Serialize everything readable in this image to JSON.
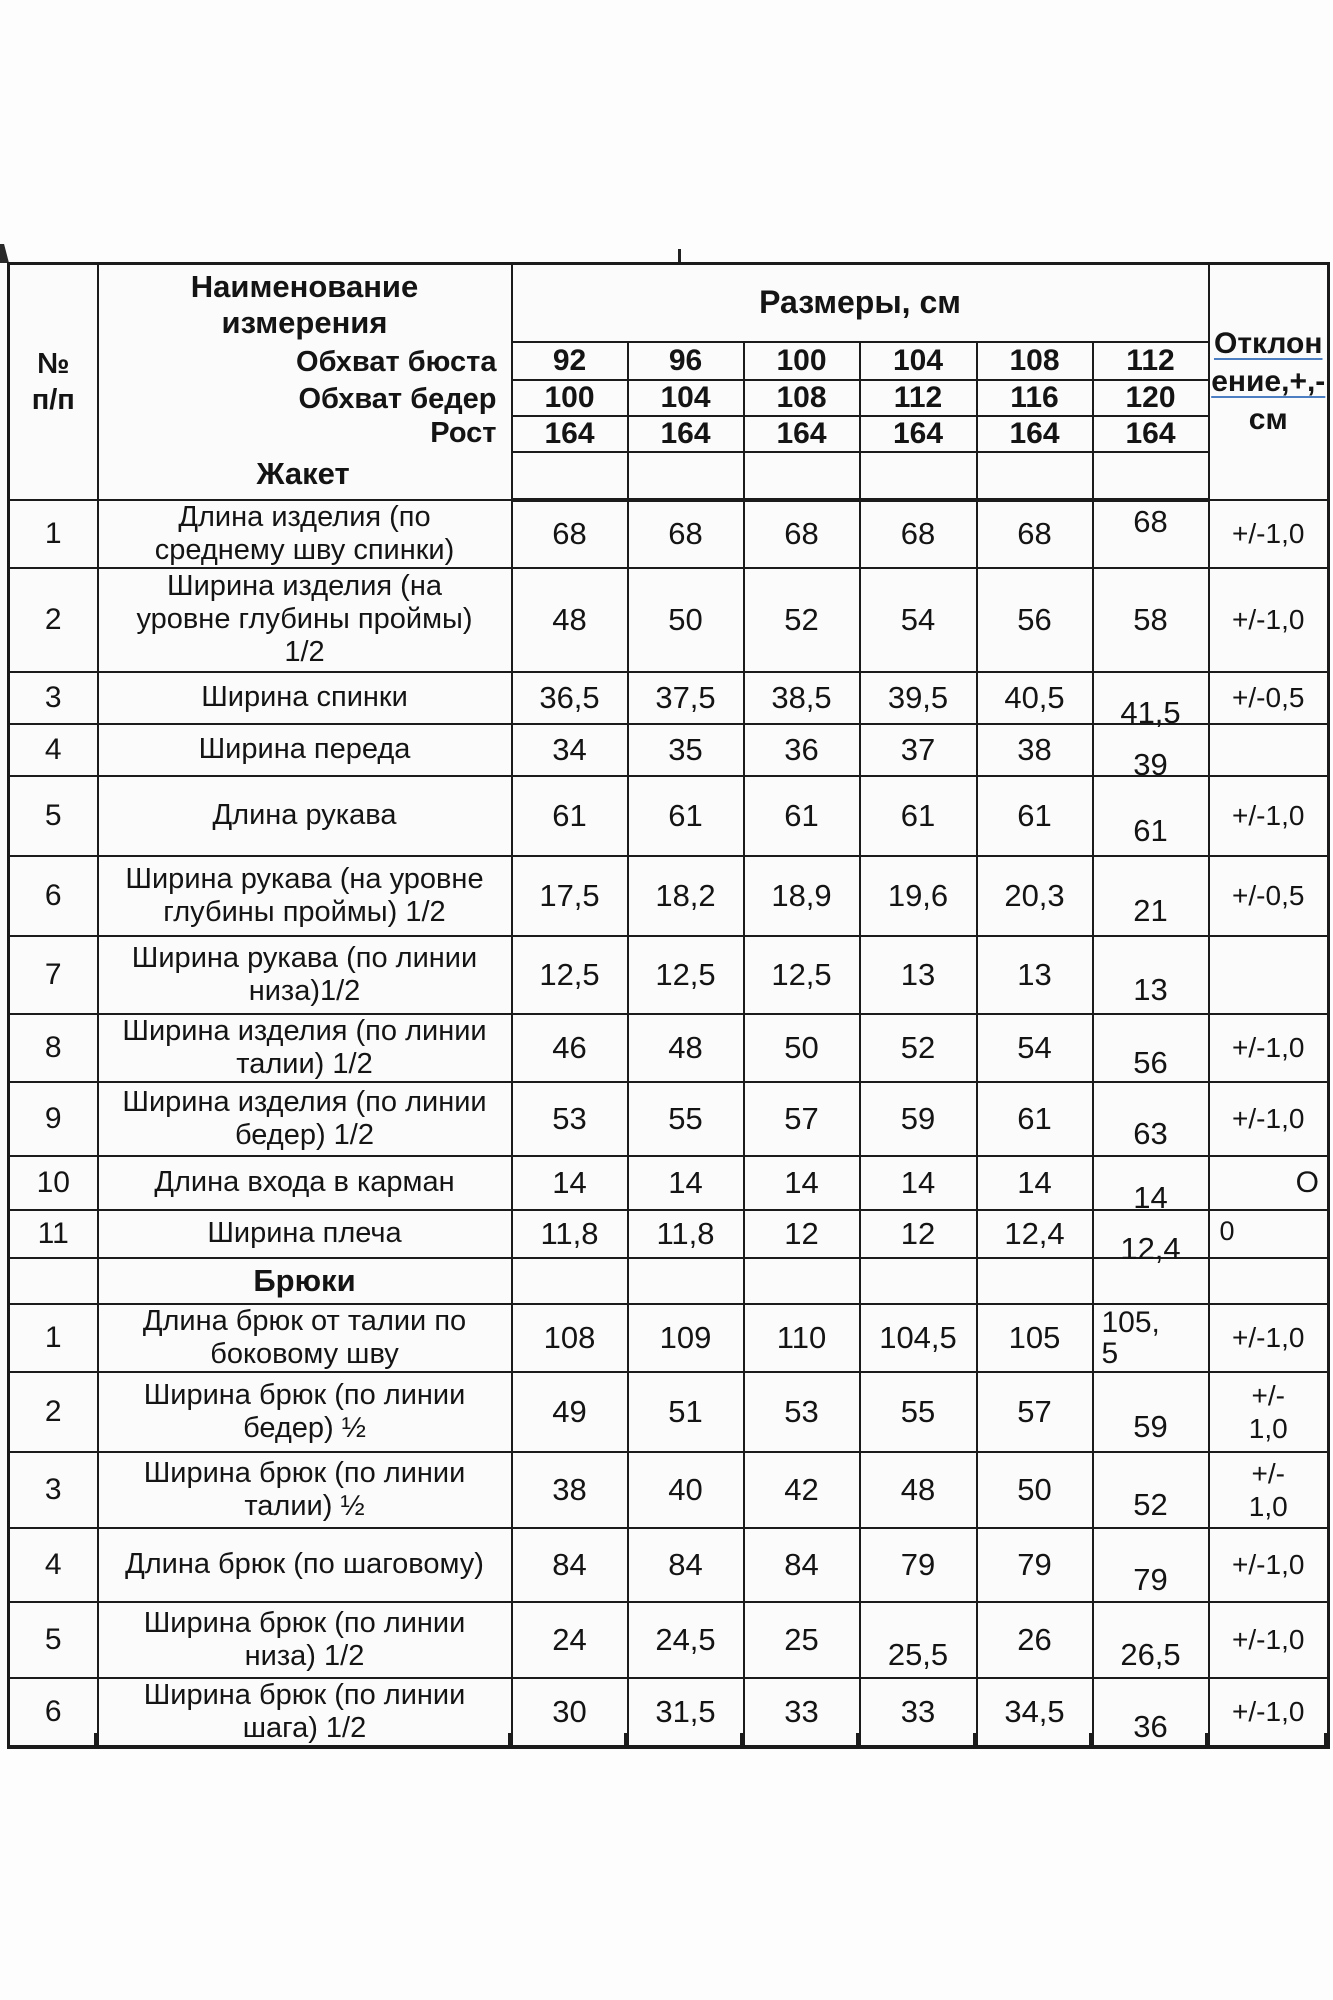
{
  "header": {
    "npp": "№\nп/п",
    "name_title": "Наименование\nизмерения",
    "sizes_title": "Размеры, см",
    "deviation_title_lines": [
      "Отклон",
      "ение,+,-",
      "см"
    ],
    "sub_rows": [
      {
        "label": "Обхват бюста",
        "values": [
          "92",
          "96",
          "100",
          "104",
          "108",
          "112"
        ]
      },
      {
        "label": "Обхват бедер",
        "values": [
          "100",
          "104",
          "108",
          "112",
          "116",
          "120"
        ]
      },
      {
        "label": "Рост",
        "values": [
          "164",
          "164",
          "164",
          "164",
          "164",
          "164"
        ]
      }
    ]
  },
  "sections": [
    {
      "title": "Жакет",
      "rows": [
        {
          "num": "1",
          "label": "Длина изделия (по\nсреднему шву спинки)",
          "values": [
            "68",
            "68",
            "68",
            "68",
            "68",
            "68"
          ],
          "deviation": "+/-1,0",
          "high": [
            5
          ]
        },
        {
          "num": "2",
          "label": "Ширина изделия (на\nуровне глубины проймы)\n1/2",
          "values": [
            "48",
            "50",
            "52",
            "54",
            "56",
            "58"
          ],
          "deviation": "+/-1,0"
        },
        {
          "num": "3",
          "label": "Ширина спинки",
          "values": [
            "36,5",
            "37,5",
            "38,5",
            "39,5",
            "40,5",
            "41,5"
          ],
          "deviation": "+/-0,5",
          "low": [
            5
          ]
        },
        {
          "num": "4",
          "label": "Ширина переда",
          "values": [
            "34",
            "35",
            "36",
            "37",
            "38",
            "39"
          ],
          "deviation": "",
          "low": [
            5
          ]
        },
        {
          "num": "5",
          "label": "Длина рукава",
          "values": [
            "61",
            "61",
            "61",
            "61",
            "61",
            "61"
          ],
          "deviation": "+/-1,0",
          "low": [
            5
          ]
        },
        {
          "num": "6",
          "label": "Ширина рукава (на уровне\nглубины проймы) 1/2",
          "values": [
            "17,5",
            "18,2",
            "18,9",
            "19,6",
            "20,3",
            "21"
          ],
          "deviation": "+/-0,5",
          "low": [
            5
          ]
        },
        {
          "num": "7",
          "label": "Ширина рукава (по линии\nниза)1/2",
          "values": [
            "12,5",
            "12,5",
            "12,5",
            "13",
            "13",
            "13"
          ],
          "deviation": "",
          "low": [
            5
          ]
        },
        {
          "num": "8",
          "label": "Ширина изделия (по линии\nталии) 1/2",
          "values": [
            "46",
            "48",
            "50",
            "52",
            "54",
            "56"
          ],
          "deviation": "+/-1,0",
          "low": [
            5
          ]
        },
        {
          "num": "9",
          "label": "Ширина изделия (по линии\nбедер) 1/2",
          "values": [
            "53",
            "55",
            "57",
            "59",
            "61",
            "63"
          ],
          "deviation": "+/-1,0",
          "low": [
            5
          ]
        },
        {
          "num": "10",
          "label": "Длина входа в карман",
          "values": [
            "14",
            "14",
            "14",
            "14",
            "14",
            "14"
          ],
          "deviation": "О",
          "dev_align": "right",
          "low": [
            5
          ]
        },
        {
          "num": "11",
          "label": "Ширина плеча",
          "values": [
            "11,8",
            "11,8",
            "12",
            "12",
            "12,4",
            "12,4"
          ],
          "deviation": "0",
          "dev_align": "left",
          "low": [
            5
          ]
        }
      ]
    },
    {
      "title": "Брюки",
      "rows": [
        {
          "num": "1",
          "label": "Длина брюк от талии по\nбоковому шву",
          "values": [
            "108",
            "109",
            "110",
            "104,5",
            "105",
            "105,\n5"
          ],
          "deviation": "+/-1,0"
        },
        {
          "num": "2",
          "label": "Ширина брюк (по линии\nбедер) ½",
          "values": [
            "49",
            "51",
            "53",
            "55",
            "57",
            "59"
          ],
          "deviation": "+/-\n1,0",
          "low": [
            5
          ]
        },
        {
          "num": "3",
          "label": "Ширина брюк (по линии\nталии) ½",
          "values": [
            "38",
            "40",
            "42",
            "48",
            "50",
            "52"
          ],
          "deviation": "+/-\n1,0",
          "low": [
            5
          ]
        },
        {
          "num": "4",
          "label": "Длина брюк (по шаговому)",
          "values": [
            "84",
            "84",
            "84",
            "79",
            "79",
            "79"
          ],
          "deviation": "+/-1,0",
          "low": [
            5
          ]
        },
        {
          "num": "5",
          "label": "Ширина брюк (по линии\nниза) 1/2",
          "values": [
            "24",
            "24,5",
            "25",
            "25,5",
            "26",
            "26,5"
          ],
          "deviation": "+/-1,0",
          "low": [
            3,
            5
          ]
        },
        {
          "num": "6",
          "label": "Ширина брюк (по линии\nшага) 1/2",
          "values": [
            "30",
            "31,5",
            "33",
            "33",
            "34,5",
            "36"
          ],
          "deviation": "+/-1,0",
          "low": [
            5
          ]
        }
      ]
    }
  ]
}
